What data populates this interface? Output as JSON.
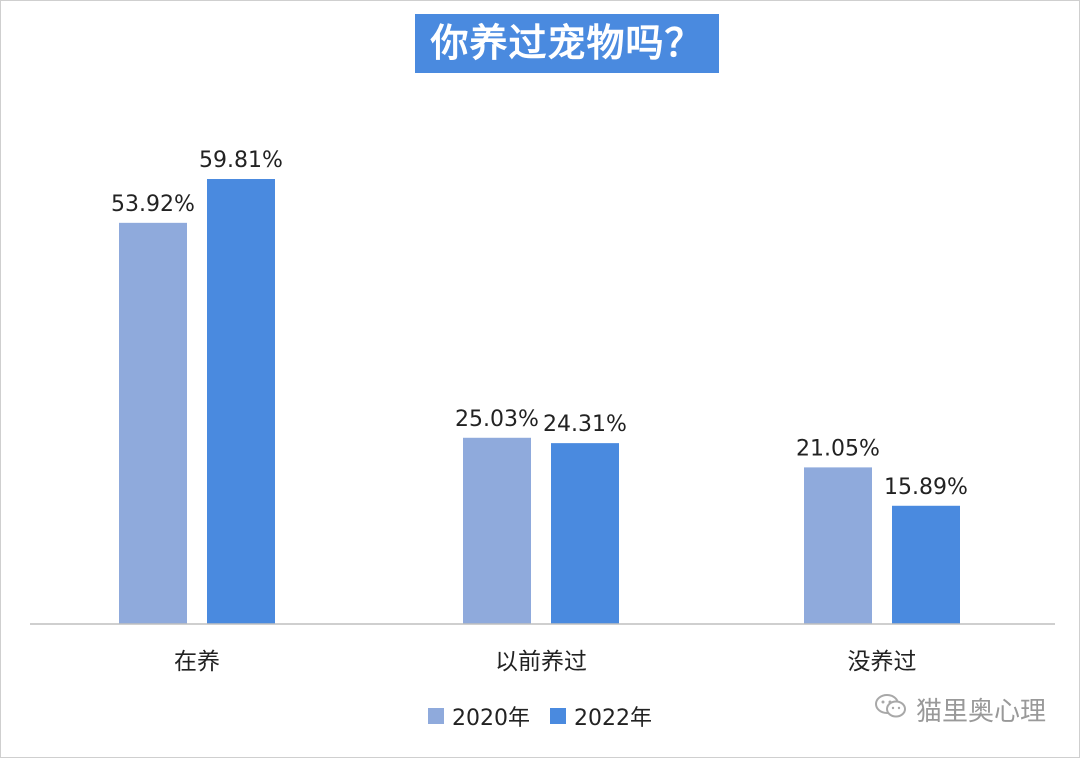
{
  "chart_data": {
    "type": "bar",
    "title": "你养过宠物吗？",
    "categories": [
      "在养",
      "以前养过",
      "没养过"
    ],
    "series": [
      {
        "name": "2020年",
        "color": "#8faadc",
        "values": [
          53.92,
          25.03,
          21.05
        ],
        "labels": [
          "53.92%",
          "25.03%",
          "21.05%"
        ]
      },
      {
        "name": "2022年",
        "color": "#4a8adf",
        "values": [
          59.81,
          24.31,
          15.89
        ],
        "labels": [
          "59.81%",
          "24.31%",
          "15.89%"
        ]
      }
    ],
    "xlabel": "",
    "ylabel": "",
    "ylim": [
      0,
      60
    ],
    "grid": false,
    "legend_position": "bottom"
  },
  "watermark": {
    "text": "猫里奥心理",
    "icon": "wechat-icon"
  }
}
